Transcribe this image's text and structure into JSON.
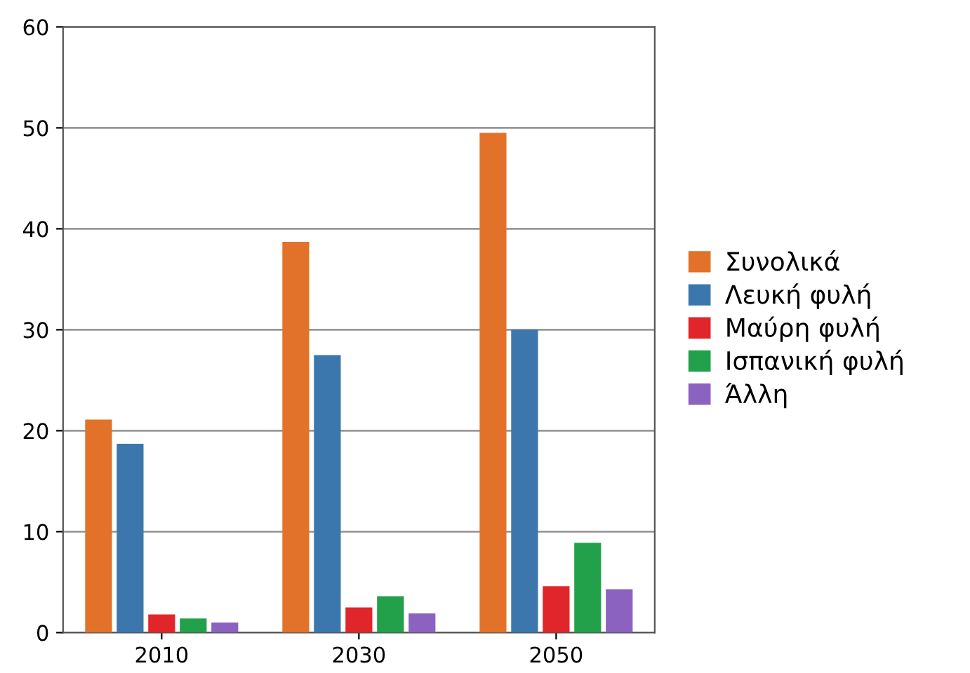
{
  "chart_data": {
    "type": "bar",
    "categories": [
      "2010",
      "2030",
      "2050"
    ],
    "series": [
      {
        "name": "Συνολικά",
        "color": "#e2722a",
        "values": [
          21.1,
          38.7,
          49.5
        ]
      },
      {
        "name": "Λευκή φυλή",
        "color": "#3b77ad",
        "values": [
          18.7,
          27.5,
          30
        ]
      },
      {
        "name": "Μαύρη φυλή",
        "color": "#e0262a",
        "values": [
          1.8,
          2.5,
          4.6
        ]
      },
      {
        "name": "Ισπανική φυλή",
        "color": "#22a04a",
        "values": [
          1.4,
          3.6,
          8.9
        ]
      },
      {
        "name": "Άλλη",
        "color": "#8c62c0",
        "values": [
          1.0,
          1.9,
          4.3
        ]
      }
    ],
    "ylim": [
      0,
      60
    ],
    "yticks": [
      0,
      10,
      20,
      30,
      40,
      50,
      60
    ],
    "grid": "y",
    "legend": "right"
  }
}
